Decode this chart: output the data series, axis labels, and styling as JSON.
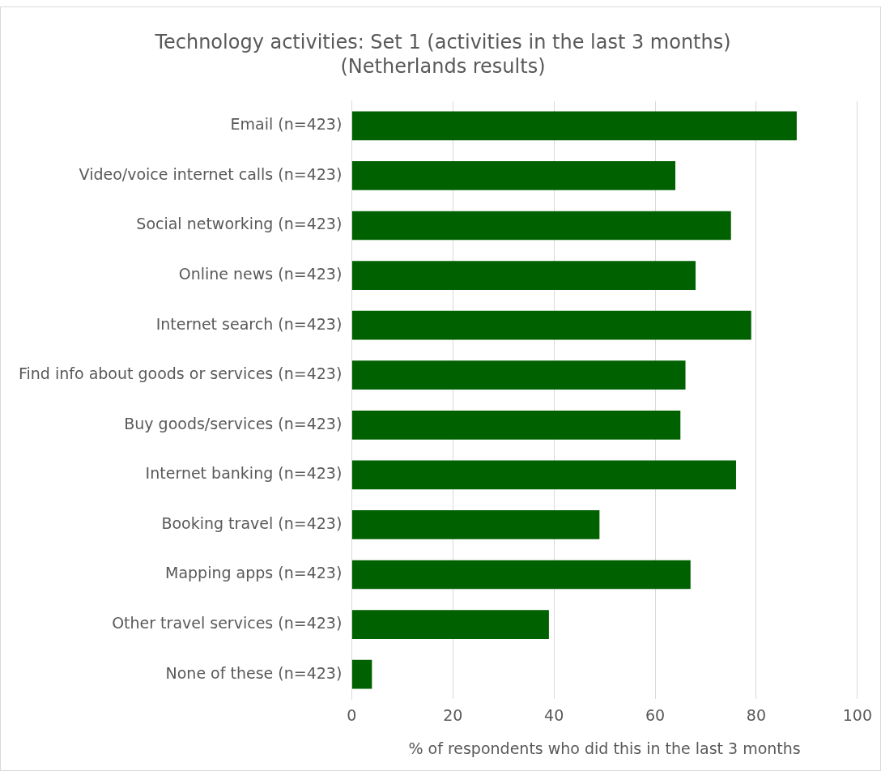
{
  "chart_data": {
    "type": "bar",
    "orientation": "horizontal",
    "title": "Technology activities: Set 1 (activities in the last 3 months)",
    "subtitle": "(Netherlands results)",
    "xlabel": "% of respondents who did this in the last 3 months",
    "categories": [
      "Email (n=423)",
      "Video/voice internet calls (n=423)",
      "Social networking (n=423)",
      "Online news (n=423)",
      "Internet search (n=423)",
      "Find info about goods or services (n=423)",
      "Buy goods/services (n=423)",
      "Internet banking (n=423)",
      "Booking travel (n=423)",
      "Mapping apps (n=423)",
      "Other travel services (n=423)",
      "None of these (n=423)"
    ],
    "values": [
      88,
      64,
      75,
      68,
      79,
      66,
      65,
      76,
      49,
      67,
      39,
      4
    ],
    "color": "#006100",
    "xlim": [
      0,
      100
    ],
    "xticks": [
      0,
      20,
      40,
      60,
      80,
      100
    ],
    "grid": "x"
  }
}
